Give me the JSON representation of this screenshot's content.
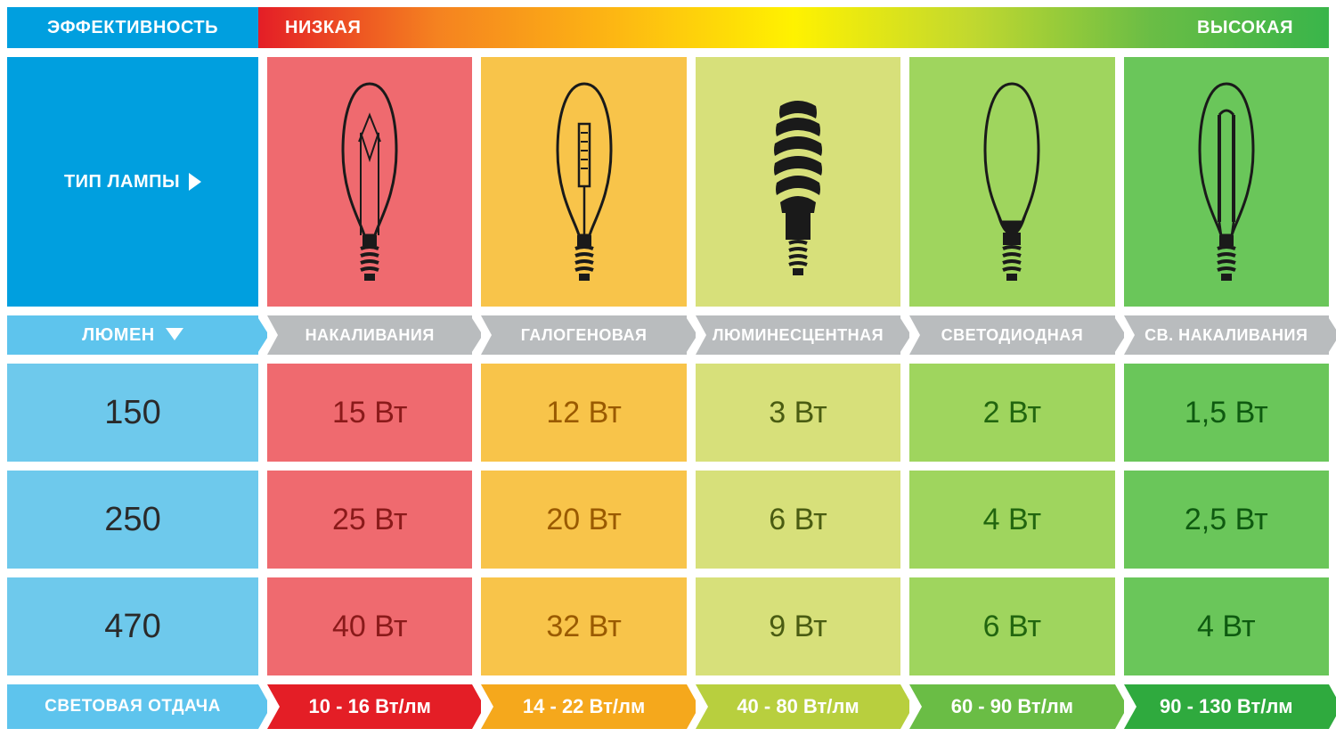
{
  "efficiency": {
    "label": "ЭФФЕКТИВНОСТЬ",
    "low": "НИЗКАЯ",
    "high": "ВЫСОКАЯ",
    "label_bg": "#009fdf",
    "gradient": [
      "#e41e26",
      "#f58220",
      "#fdb713",
      "#fff200",
      "#c1d82f",
      "#6abd45",
      "#39b54a"
    ]
  },
  "type_label": "ТИП ЛАМПЫ",
  "lumen_label": "ЛЮМЕН",
  "footer_label": "СВЕТОВАЯ ОТДАЧА",
  "colors": {
    "blue": "#009fdf",
    "blue_banner": "#5ec4ed",
    "grey_banner": "#b9bcbe"
  },
  "columns": [
    {
      "id": "incandescent",
      "name": "НАКАЛИВАНИЯ",
      "bg": "#ef6a6f",
      "banner": "#e41e26",
      "efficacy": "10 - 16 Вт/лм",
      "text_color": "#8a1a1a"
    },
    {
      "id": "halogen",
      "name": "ГАЛОГЕНОВАЯ",
      "bg": "#f8c44a",
      "banner": "#f5a81c",
      "efficacy": "14 - 22 Вт/лм",
      "text_color": "#9a5a00"
    },
    {
      "id": "fluorescent",
      "name": "ЛЮМИНЕСЦЕНТНАЯ",
      "bg": "#d7e07a",
      "banner": "#b8cf3e",
      "efficacy": "40 - 80 Вт/лм",
      "text_color": "#4a5c12"
    },
    {
      "id": "led",
      "name": "СВЕТОДИОДНАЯ",
      "bg": "#9fd55e",
      "banner": "#6abd45",
      "efficacy": "60 - 90 Вт/лм",
      "text_color": "#22660f"
    },
    {
      "id": "led_filament",
      "name": "СВ. НАКАЛИВАНИЯ",
      "bg": "#6ac65a",
      "banner": "#2faa3e",
      "efficacy": "90 - 130 Вт/лм",
      "text_color": "#0e5a10"
    }
  ],
  "rows": [
    {
      "lumen": "150",
      "watts": [
        "15 Вт",
        "12 Вт",
        "3 Вт",
        "2 Вт",
        "1,5 Вт"
      ]
    },
    {
      "lumen": "250",
      "watts": [
        "25 Вт",
        "20 Вт",
        "6 Вт",
        "4 Вт",
        "2,5 Вт"
      ]
    },
    {
      "lumen": "470",
      "watts": [
        "40 Вт",
        "32 Вт",
        "9 Вт",
        "6 Вт",
        "4 Вт"
      ]
    }
  ],
  "lumen_cell_bg": "#6ec9ec",
  "font": {
    "cell_size": 34,
    "lumen_size": 38,
    "banner_size": 18,
    "header_size": 20
  }
}
